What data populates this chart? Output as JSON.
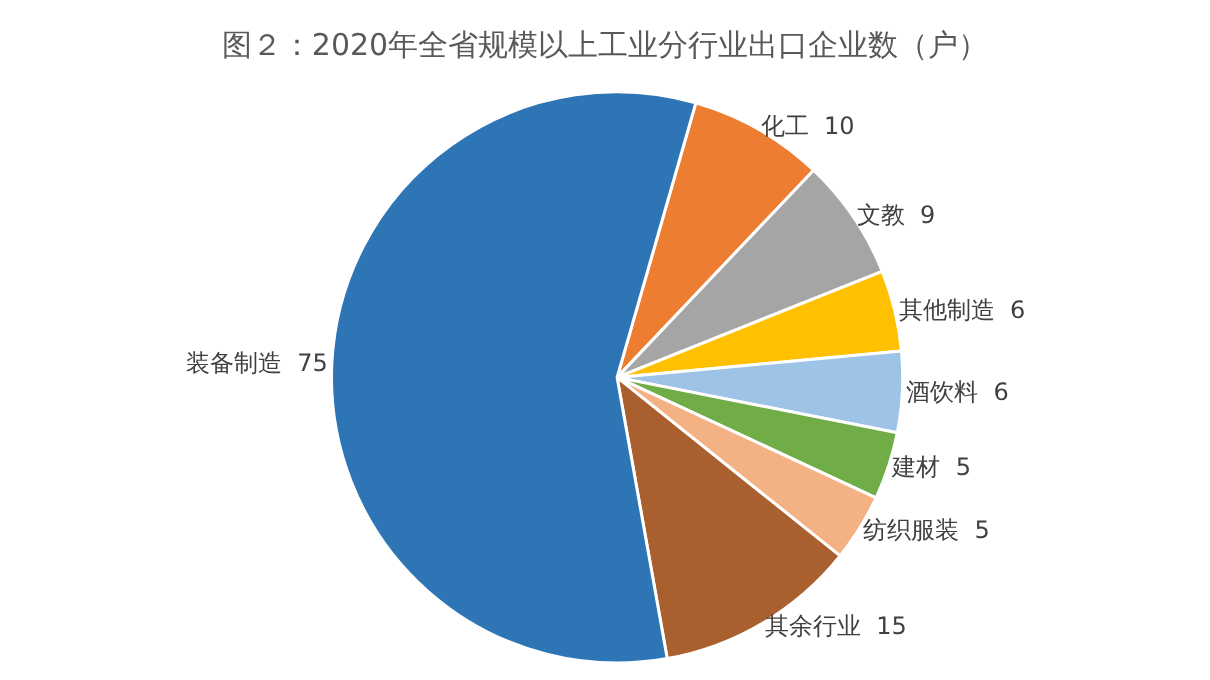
{
  "chart_data": {
    "type": "pie",
    "title": "图２：2020年全省规模以上工业分行业出口企业数（户）",
    "categories": [
      "化工",
      "文教",
      "其他制造",
      "酒饮料",
      "建材",
      "纺织服装",
      "其余行业",
      "装备制造"
    ],
    "values": [
      10,
      9,
      6,
      6,
      5,
      5,
      15,
      75
    ],
    "colors": [
      "#ed7d31",
      "#a5a5a5",
      "#ffc000",
      "#9dc3e6",
      "#70ad47",
      "#f4b183",
      "#a9602e",
      "#2e75b6"
    ],
    "data_labels": true,
    "legend": false
  }
}
